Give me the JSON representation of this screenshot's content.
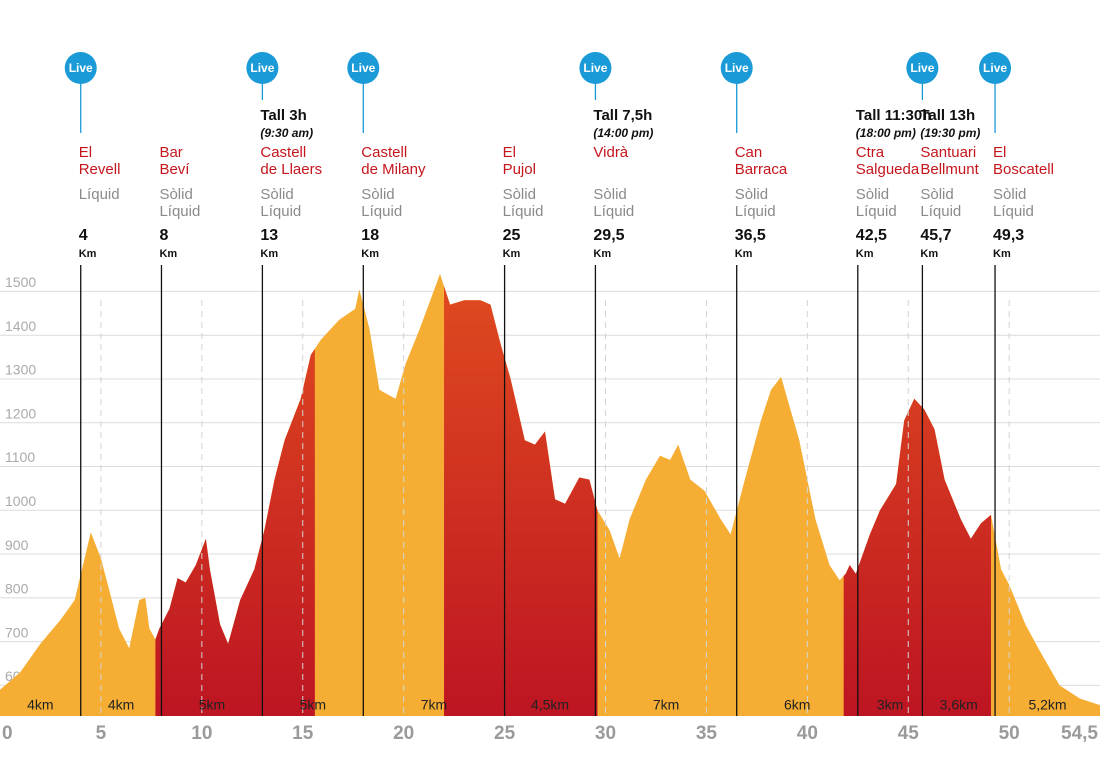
{
  "chart_data": {
    "type": "area",
    "x": [
      0,
      1.0,
      2.0,
      3.0,
      3.7,
      4.5,
      5.0,
      5.4,
      5.9,
      6.4,
      6.9,
      7.2,
      7.4,
      7.7,
      7.9,
      8.4,
      8.8,
      9.2,
      9.7,
      10.2,
      10.4,
      10.9,
      11.3,
      11.9,
      12.6,
      13.1,
      13.6,
      14.1,
      14.9,
      15.4,
      15.9,
      16.8,
      17.6,
      17.8,
      18.3,
      18.8,
      19.6,
      20.1,
      20.8,
      21.6,
      21.8,
      22.3,
      23.0,
      23.8,
      24.3,
      24.8,
      25.3,
      26.0,
      26.5,
      27.0,
      27.5,
      28.0,
      28.7,
      29.2,
      29.6,
      30.2,
      30.7,
      31.2,
      32.0,
      32.7,
      33.2,
      33.6,
      34.2,
      34.9,
      35.7,
      36.2,
      36.9,
      37.7,
      38.2,
      38.7,
      39.1,
      39.6,
      40.4,
      41.1,
      41.6,
      41.9,
      42.1,
      42.4,
      43.1,
      43.6,
      44.4,
      44.8,
      45.3,
      45.8,
      46.3,
      46.8,
      47.6,
      48.1,
      48.6,
      49.1,
      49.6,
      50.0,
      50.8,
      51.5,
      52.5,
      53.5,
      54.5
    ],
    "values": [
      590,
      630,
      695,
      750,
      795,
      950,
      890,
      820,
      730,
      685,
      795,
      800,
      730,
      705,
      730,
      775,
      845,
      835,
      875,
      935,
      865,
      740,
      695,
      795,
      865,
      955,
      1070,
      1160,
      1255,
      1355,
      1390,
      1435,
      1460,
      1505,
      1415,
      1275,
      1255,
      1335,
      1415,
      1515,
      1540,
      1470,
      1480,
      1480,
      1470,
      1380,
      1300,
      1160,
      1150,
      1180,
      1025,
      1015,
      1075,
      1070,
      1000,
      955,
      890,
      980,
      1070,
      1125,
      1115,
      1150,
      1070,
      1045,
      980,
      945,
      1070,
      1205,
      1275,
      1305,
      1240,
      1160,
      980,
      875,
      840,
      855,
      875,
      855,
      945,
      1000,
      1060,
      1205,
      1255,
      1230,
      1185,
      1070,
      980,
      935,
      970,
      990,
      865,
      830,
      740,
      680,
      600,
      570,
      555
    ],
    "color": "#f5ae33",
    "bands": [
      {
        "from": 7.7,
        "to": 15.6,
        "colors": [
          "#e8561f",
          "#bd1522"
        ]
      },
      {
        "from": 22.0,
        "to": 29.6,
        "colors": [
          "#e8561f",
          "#bd1522"
        ]
      },
      {
        "from": 41.8,
        "to": 49.1,
        "colors": [
          "#e8561f",
          "#bd1522"
        ]
      }
    ],
    "xlim": [
      0,
      54.5
    ],
    "ylim": [
      530,
      1750
    ],
    "xticks": [
      0,
      5,
      10,
      15,
      20,
      25,
      30,
      35,
      40,
      45,
      50,
      {
        "value": 54.5,
        "label": "54,5"
      }
    ],
    "yticks": [
      600,
      700,
      800,
      900,
      1000,
      1100,
      1200,
      1300,
      1400,
      1500
    ],
    "grid": true,
    "stations": [
      {
        "km": 4,
        "unit": "Km",
        "name": [
          "El",
          "Revell"
        ],
        "supplies": [
          "Líquid"
        ],
        "live": "Live"
      },
      {
        "km": 8,
        "unit": "Km",
        "name": [
          "Bar",
          "Beví"
        ],
        "supplies": [
          "Sòlid",
          "Líquid"
        ]
      },
      {
        "km": 13,
        "unit": "Km",
        "name": [
          "Castell",
          "de Llaers"
        ],
        "supplies": [
          "Sòlid",
          "Líquid"
        ],
        "live": "Live",
        "cutoff": [
          "Tall 3h",
          "(9:30 am)"
        ]
      },
      {
        "km": 18,
        "unit": "Km",
        "name": [
          "Castell",
          "de Milany"
        ],
        "supplies": [
          "Sòlid",
          "Líquid"
        ],
        "live": "Live"
      },
      {
        "km": 25,
        "unit": "Km",
        "name": [
          "El",
          "Pujol"
        ],
        "supplies": [
          "Sòlid",
          "Líquid"
        ]
      },
      {
        "km": {
          "value": 29.5,
          "label": "29,5"
        },
        "unit": "Km",
        "name": [
          "Vidrà"
        ],
        "supplies": [
          "Sòlid",
          "Líquid"
        ],
        "live": "Live",
        "cutoff": [
          "Tall 7,5h",
          "(14:00 pm)"
        ]
      },
      {
        "km": {
          "value": 36.5,
          "label": "36,5"
        },
        "unit": "Km",
        "name": [
          "Can",
          "Barraca"
        ],
        "supplies": [
          "Sòlid",
          "Líquid"
        ],
        "live": "Live"
      },
      {
        "km": {
          "value": 42.5,
          "label": "42,5"
        },
        "unit": "Km",
        "name": [
          "Ctra",
          "Salgueda"
        ],
        "supplies": [
          "Sòlid",
          "Líquid"
        ],
        "cutoff": [
          "Tall 11:30h",
          "(18:00 pm)"
        ]
      },
      {
        "km": {
          "value": 45.7,
          "label": "45,7"
        },
        "unit": "Km",
        "name": [
          "Santuari",
          "Bellmunt"
        ],
        "supplies": [
          "Sòlid",
          "Líquid"
        ],
        "live": "Live",
        "cutoff": [
          "Tall 13h",
          "(19:30 pm)"
        ]
      },
      {
        "km": {
          "value": 49.3,
          "label": "49,3"
        },
        "unit": "Km",
        "name": [
          "El",
          "Boscatell"
        ],
        "supplies": [
          "Sòlid",
          "Líquid"
        ],
        "live": "Live"
      }
    ],
    "segments": [
      "4km",
      "4km",
      "5km",
      "5km",
      "7km",
      "4,5km",
      "7km",
      "6km",
      "3km",
      "3,6km",
      "5,2km"
    ]
  }
}
